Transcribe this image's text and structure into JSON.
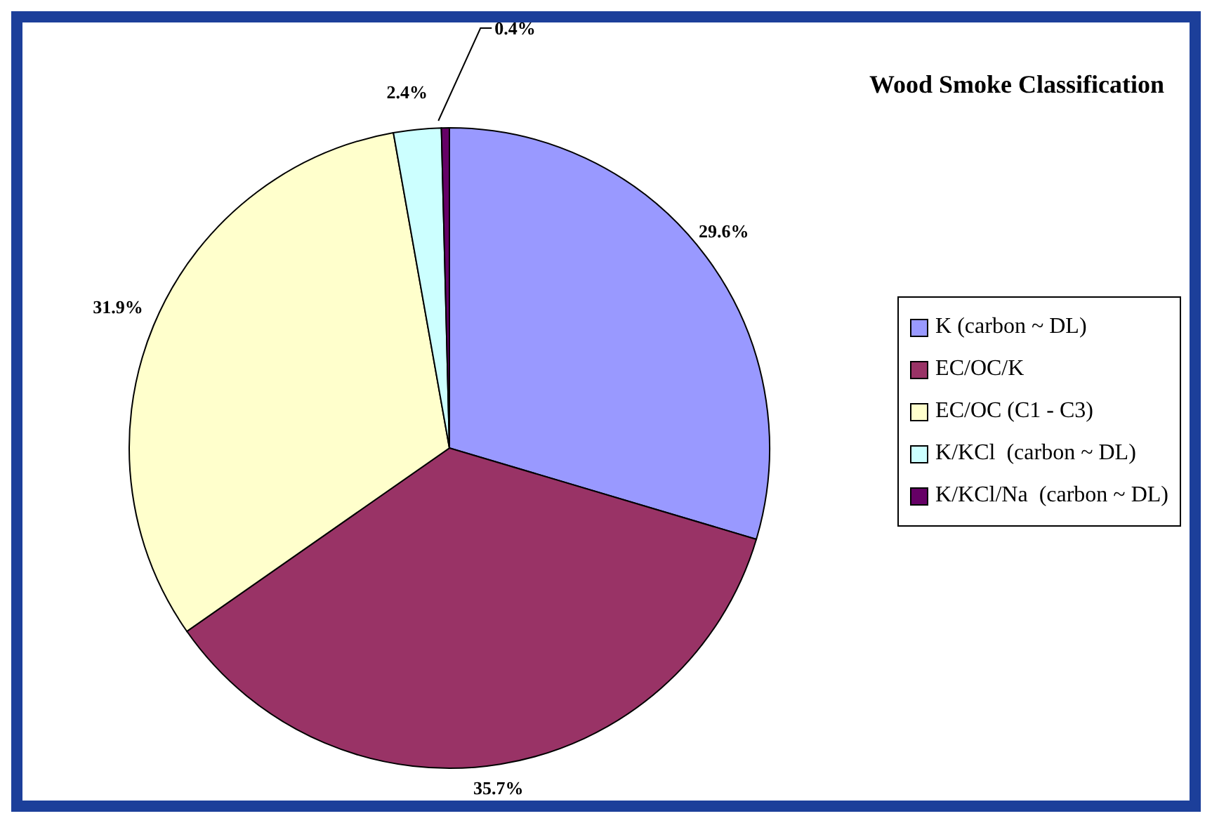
{
  "chart_data": {
    "type": "pie",
    "title": "Wood Smoke Classification",
    "categories": [
      "K (carbon ~ DL)",
      "EC/OC/K",
      "EC/OC (C1 - C3)",
      "K/KCl  (carbon ~ DL)",
      "K/KCl/Na  (carbon ~ DL)"
    ],
    "values": [
      29.6,
      35.7,
      31.9,
      2.4,
      0.4
    ],
    "colors": [
      "#9999ff",
      "#993366",
      "#ffffcc",
      "#ccffff",
      "#660066"
    ],
    "value_labels": [
      "29.6%",
      "35.7%",
      "31.9%",
      "2.4%",
      "0.4%"
    ],
    "legend": "right"
  }
}
